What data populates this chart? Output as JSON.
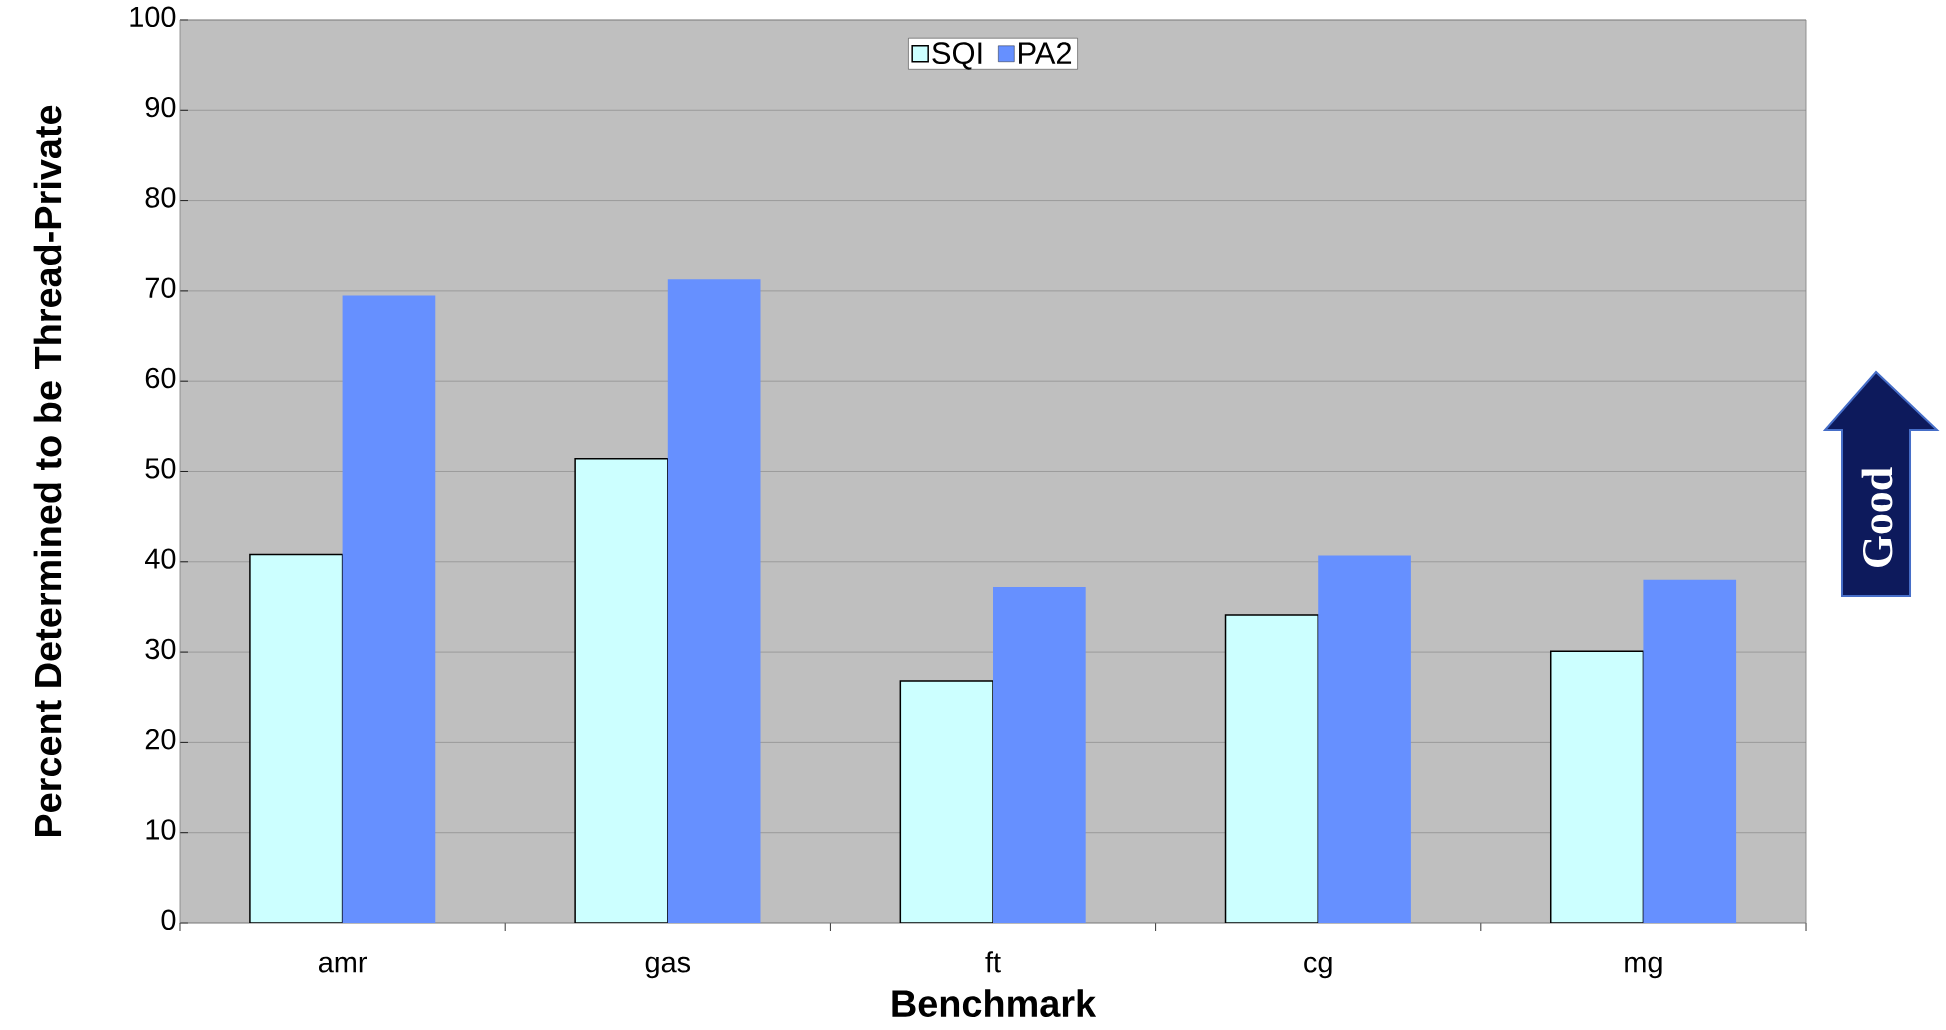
{
  "chart_data": {
    "type": "bar",
    "xlabel": "Benchmark",
    "ylabel": "Percent Determined to be Thread-Private",
    "categories": [
      "amr",
      "gas",
      "ft",
      "cg",
      "mg"
    ],
    "series": [
      {
        "name": "SQI",
        "color": "#ccffff",
        "values": [
          40.8,
          51.4,
          26.8,
          34.1,
          30.1
        ]
      },
      {
        "name": "PA2",
        "color": "#6690ff",
        "values": [
          69.5,
          71.3,
          37.2,
          40.7,
          38.0
        ]
      }
    ],
    "ylim": [
      0,
      100
    ],
    "yticks": [
      0,
      10,
      20,
      30,
      40,
      50,
      60,
      70,
      80,
      90,
      100
    ],
    "grid": "y",
    "legend": "top",
    "annotations": [
      "Good"
    ]
  }
}
